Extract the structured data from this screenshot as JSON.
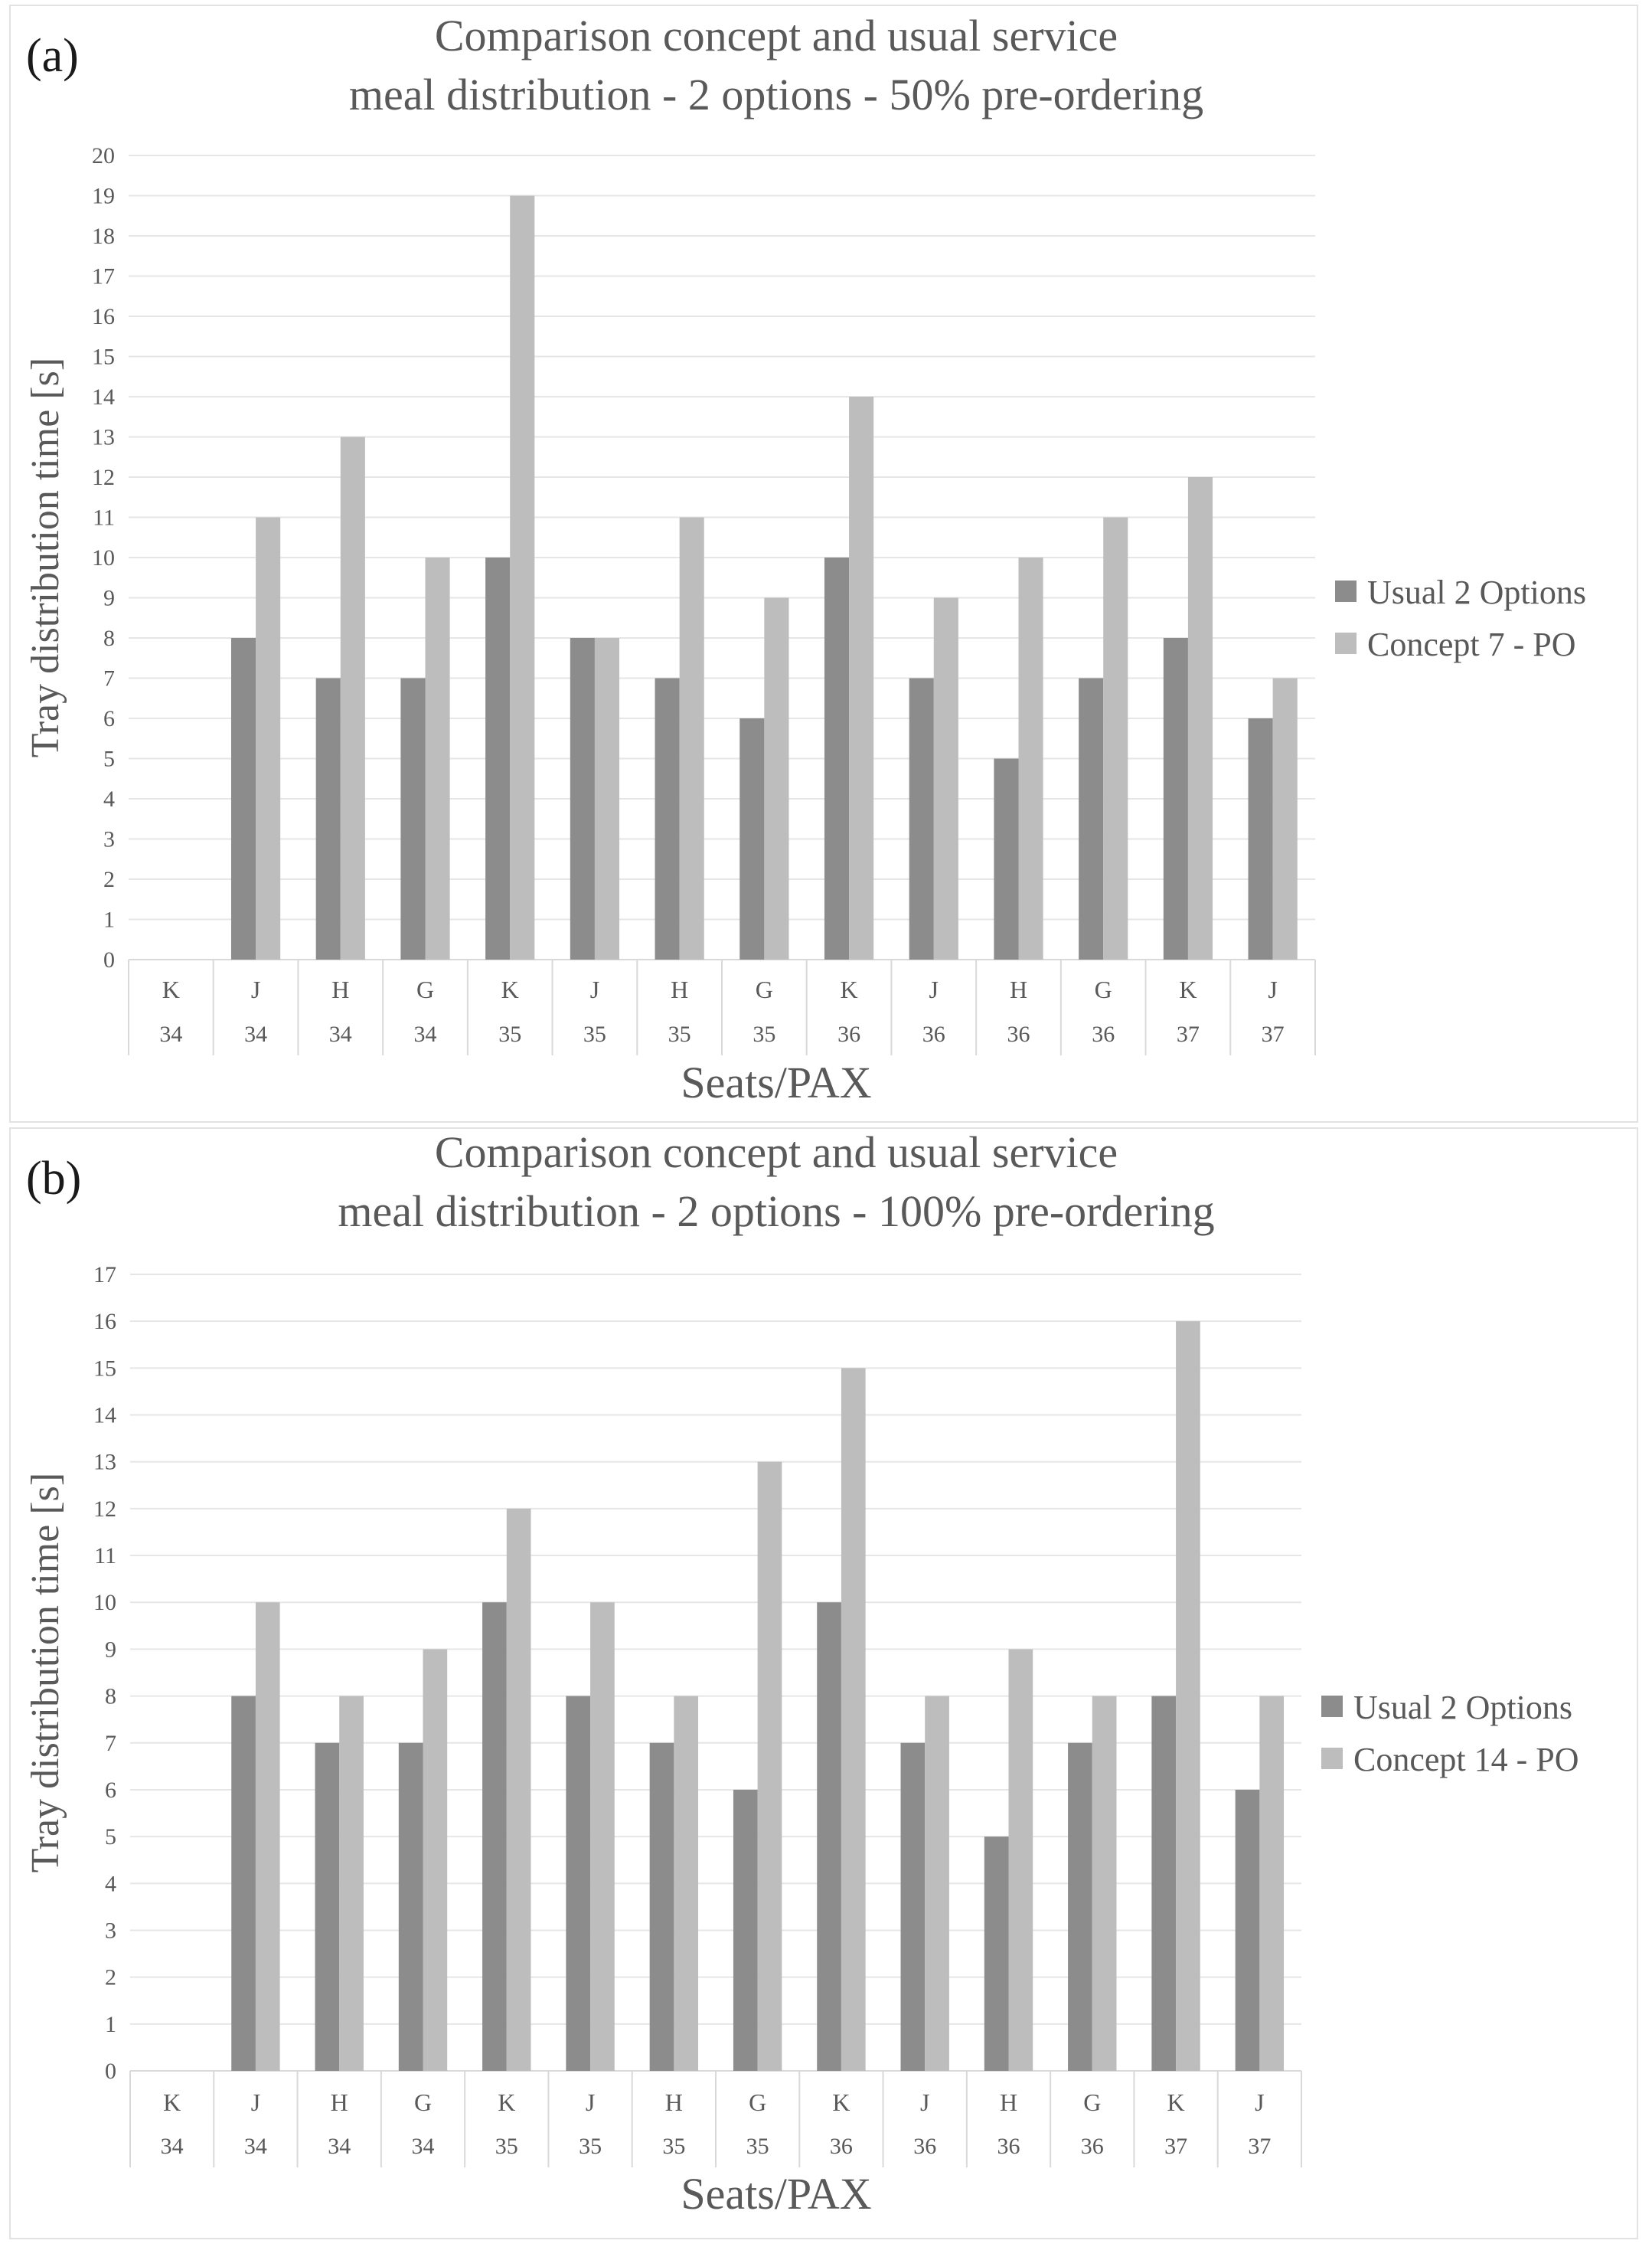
{
  "chart_data": [
    {
      "type": "bar",
      "panel_label": "(a)",
      "title_line1": "Comparison concept and usual service",
      "title_line2": "meal distribution - 2 options - 50% pre-ordering",
      "ylabel": "Tray distribution time [s]",
      "xlabel": "Seats/PAX",
      "ylim": [
        0,
        20
      ],
      "yticks": [
        "0",
        "1",
        "2",
        "3",
        "4",
        "5",
        "6",
        "7",
        "8",
        "9",
        "10",
        "11",
        "12",
        "13",
        "14",
        "15",
        "16",
        "17",
        "18",
        "19",
        "20"
      ],
      "categories_seat": [
        "K",
        "J",
        "H",
        "G",
        "K",
        "J",
        "H",
        "G",
        "K",
        "J",
        "H",
        "G",
        "K",
        "J"
      ],
      "categories_row": [
        "34",
        "34",
        "34",
        "34",
        "35",
        "35",
        "35",
        "35",
        "36",
        "36",
        "36",
        "36",
        "37",
        "37"
      ],
      "series": [
        {
          "name": "Usual 2 Options",
          "color": "#8c8c8c",
          "values": [
            0,
            8,
            7,
            7,
            10,
            8,
            7,
            6,
            10,
            7,
            5,
            7,
            8,
            6
          ]
        },
        {
          "name": "Concept 7 - PO",
          "color": "#bdbdbd",
          "values": [
            0,
            11,
            13,
            10,
            19,
            8,
            11,
            9,
            14,
            9,
            10,
            11,
            12,
            7
          ]
        }
      ],
      "legend_position": "right",
      "grid": true
    },
    {
      "type": "bar",
      "panel_label": "(b)",
      "title_line1": "Comparison concept and usual service",
      "title_line2": "meal distribution - 2 options - 100% pre-ordering",
      "ylabel": "Tray distribution time [s]",
      "xlabel": "Seats/PAX",
      "ylim": [
        0,
        17
      ],
      "yticks": [
        "0",
        "1",
        "2",
        "3",
        "4",
        "5",
        "6",
        "7",
        "8",
        "9",
        "10",
        "11",
        "12",
        "13",
        "14",
        "15",
        "16",
        "17"
      ],
      "categories_seat": [
        "K",
        "J",
        "H",
        "G",
        "K",
        "J",
        "H",
        "G",
        "K",
        "J",
        "H",
        "G",
        "K",
        "J"
      ],
      "categories_row": [
        "34",
        "34",
        "34",
        "34",
        "35",
        "35",
        "35",
        "35",
        "36",
        "36",
        "36",
        "36",
        "37",
        "37"
      ],
      "series": [
        {
          "name": "Usual 2 Options",
          "color": "#8c8c8c",
          "values": [
            0,
            8,
            7,
            7,
            10,
            8,
            7,
            6,
            10,
            7,
            5,
            7,
            8,
            6
          ]
        },
        {
          "name": "Concept 14 - PO",
          "color": "#bdbdbd",
          "values": [
            0,
            10,
            8,
            9,
            12,
            10,
            8,
            13,
            15,
            8,
            9,
            8,
            16,
            8
          ]
        }
      ],
      "legend_position": "right",
      "grid": true
    }
  ]
}
